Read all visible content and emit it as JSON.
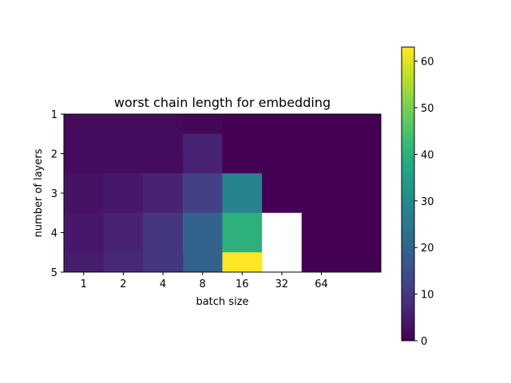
{
  "chart_data": {
    "type": "heatmap",
    "title": "worst chain length for embedding",
    "xlabel": "batch size",
    "ylabel": "number of layers",
    "x_ticks": [
      "1",
      "2",
      "4",
      "8",
      "16",
      "32",
      "64"
    ],
    "y_ticks": [
      "1",
      "2",
      "3",
      "4",
      "5"
    ],
    "colormap": "viridis",
    "colorbar": {
      "vmin": 0,
      "vmax": 63,
      "ticks": [
        "0",
        "10",
        "20",
        "30",
        "40",
        "50",
        "60"
      ],
      "tick_values": [
        0,
        10,
        20,
        30,
        40,
        50,
        60
      ]
    },
    "xlim": [
      0.5,
      8.5
    ],
    "ylim": [
      1,
      5
    ],
    "cells": [
      {
        "x": [
          0.5,
          1.5
        ],
        "y": [
          1,
          2
        ],
        "value": 2
      },
      {
        "x": [
          1.5,
          2.5
        ],
        "y": [
          1,
          2
        ],
        "value": 2
      },
      {
        "x": [
          2.5,
          3.5
        ],
        "y": [
          1,
          2
        ],
        "value": 2
      },
      {
        "x": [
          3.5,
          4.5
        ],
        "y": [
          1,
          1.5
        ],
        "value": 1
      },
      {
        "x": [
          3.5,
          4.5
        ],
        "y": [
          1.5,
          2.5
        ],
        "value": 6
      },
      {
        "x": [
          4.5,
          8.5
        ],
        "y": [
          1,
          2.5
        ],
        "value": 0
      },
      {
        "x": [
          0.5,
          1.5
        ],
        "y": [
          2,
          3
        ],
        "value": 2
      },
      {
        "x": [
          1.5,
          2.5
        ],
        "y": [
          2,
          3
        ],
        "value": 2
      },
      {
        "x": [
          2.5,
          3.5
        ],
        "y": [
          2,
          3
        ],
        "value": 2
      },
      {
        "x": [
          0.5,
          1.5
        ],
        "y": [
          2.5,
          3.5
        ],
        "value": 3
      },
      {
        "x": [
          1.5,
          2.5
        ],
        "y": [
          2.5,
          3.5
        ],
        "value": 4
      },
      {
        "x": [
          2.5,
          3.5
        ],
        "y": [
          2.5,
          3.5
        ],
        "value": 6
      },
      {
        "x": [
          3.5,
          4.5
        ],
        "y": [
          2.5,
          3.5
        ],
        "value": 12
      },
      {
        "x": [
          4.5,
          5.5
        ],
        "y": [
          2.5,
          3.5
        ],
        "value": 28
      },
      {
        "x": [
          5.5,
          8.5
        ],
        "y": [
          2.5,
          3.5
        ],
        "value": 0
      },
      {
        "x": [
          0.5,
          1.5
        ],
        "y": [
          3.5,
          4.5
        ],
        "value": 4
      },
      {
        "x": [
          1.5,
          2.5
        ],
        "y": [
          3.5,
          4.5
        ],
        "value": 6
      },
      {
        "x": [
          2.5,
          3.5
        ],
        "y": [
          3.5,
          4.5
        ],
        "value": 10
      },
      {
        "x": [
          3.5,
          4.5
        ],
        "y": [
          3.5,
          5
        ],
        "value": 20
      },
      {
        "x": [
          4.5,
          5.5
        ],
        "y": [
          3.5,
          4.5
        ],
        "value": 40
      },
      {
        "x": [
          5.5,
          6.5
        ],
        "y": [
          3.5,
          5
        ],
        "value": null
      },
      {
        "x": [
          6.5,
          8.5
        ],
        "y": [
          3.5,
          5
        ],
        "value": 0
      },
      {
        "x": [
          0.5,
          1.5
        ],
        "y": [
          4.5,
          5
        ],
        "value": 5
      },
      {
        "x": [
          1.5,
          2.5
        ],
        "y": [
          4.5,
          5
        ],
        "value": 7
      },
      {
        "x": [
          2.5,
          3.5
        ],
        "y": [
          4.5,
          5
        ],
        "value": 10
      },
      {
        "x": [
          4.5,
          5.5
        ],
        "y": [
          4.5,
          5
        ],
        "value": 63
      }
    ]
  }
}
